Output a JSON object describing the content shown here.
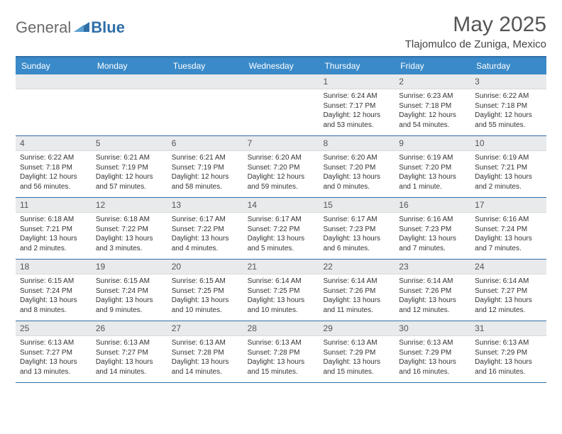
{
  "logo": {
    "general": "General",
    "blue": "Blue"
  },
  "title": "May 2025",
  "location": "Tlajomulco de Zuniga, Mexico",
  "accent_color": "#3a8ac9",
  "border_color": "#2f6fa8",
  "num_bg": "#e9eaec",
  "days": [
    "Sunday",
    "Monday",
    "Tuesday",
    "Wednesday",
    "Thursday",
    "Friday",
    "Saturday"
  ],
  "weeks": [
    [
      null,
      null,
      null,
      null,
      {
        "n": "1",
        "sr": "Sunrise: 6:24 AM",
        "ss": "Sunset: 7:17 PM",
        "dl": "Daylight: 12 hours and 53 minutes."
      },
      {
        "n": "2",
        "sr": "Sunrise: 6:23 AM",
        "ss": "Sunset: 7:18 PM",
        "dl": "Daylight: 12 hours and 54 minutes."
      },
      {
        "n": "3",
        "sr": "Sunrise: 6:22 AM",
        "ss": "Sunset: 7:18 PM",
        "dl": "Daylight: 12 hours and 55 minutes."
      }
    ],
    [
      {
        "n": "4",
        "sr": "Sunrise: 6:22 AM",
        "ss": "Sunset: 7:18 PM",
        "dl": "Daylight: 12 hours and 56 minutes."
      },
      {
        "n": "5",
        "sr": "Sunrise: 6:21 AM",
        "ss": "Sunset: 7:19 PM",
        "dl": "Daylight: 12 hours and 57 minutes."
      },
      {
        "n": "6",
        "sr": "Sunrise: 6:21 AM",
        "ss": "Sunset: 7:19 PM",
        "dl": "Daylight: 12 hours and 58 minutes."
      },
      {
        "n": "7",
        "sr": "Sunrise: 6:20 AM",
        "ss": "Sunset: 7:20 PM",
        "dl": "Daylight: 12 hours and 59 minutes."
      },
      {
        "n": "8",
        "sr": "Sunrise: 6:20 AM",
        "ss": "Sunset: 7:20 PM",
        "dl": "Daylight: 13 hours and 0 minutes."
      },
      {
        "n": "9",
        "sr": "Sunrise: 6:19 AM",
        "ss": "Sunset: 7:20 PM",
        "dl": "Daylight: 13 hours and 1 minute."
      },
      {
        "n": "10",
        "sr": "Sunrise: 6:19 AM",
        "ss": "Sunset: 7:21 PM",
        "dl": "Daylight: 13 hours and 2 minutes."
      }
    ],
    [
      {
        "n": "11",
        "sr": "Sunrise: 6:18 AM",
        "ss": "Sunset: 7:21 PM",
        "dl": "Daylight: 13 hours and 2 minutes."
      },
      {
        "n": "12",
        "sr": "Sunrise: 6:18 AM",
        "ss": "Sunset: 7:22 PM",
        "dl": "Daylight: 13 hours and 3 minutes."
      },
      {
        "n": "13",
        "sr": "Sunrise: 6:17 AM",
        "ss": "Sunset: 7:22 PM",
        "dl": "Daylight: 13 hours and 4 minutes."
      },
      {
        "n": "14",
        "sr": "Sunrise: 6:17 AM",
        "ss": "Sunset: 7:22 PM",
        "dl": "Daylight: 13 hours and 5 minutes."
      },
      {
        "n": "15",
        "sr": "Sunrise: 6:17 AM",
        "ss": "Sunset: 7:23 PM",
        "dl": "Daylight: 13 hours and 6 minutes."
      },
      {
        "n": "16",
        "sr": "Sunrise: 6:16 AM",
        "ss": "Sunset: 7:23 PM",
        "dl": "Daylight: 13 hours and 7 minutes."
      },
      {
        "n": "17",
        "sr": "Sunrise: 6:16 AM",
        "ss": "Sunset: 7:24 PM",
        "dl": "Daylight: 13 hours and 7 minutes."
      }
    ],
    [
      {
        "n": "18",
        "sr": "Sunrise: 6:15 AM",
        "ss": "Sunset: 7:24 PM",
        "dl": "Daylight: 13 hours and 8 minutes."
      },
      {
        "n": "19",
        "sr": "Sunrise: 6:15 AM",
        "ss": "Sunset: 7:24 PM",
        "dl": "Daylight: 13 hours and 9 minutes."
      },
      {
        "n": "20",
        "sr": "Sunrise: 6:15 AM",
        "ss": "Sunset: 7:25 PM",
        "dl": "Daylight: 13 hours and 10 minutes."
      },
      {
        "n": "21",
        "sr": "Sunrise: 6:14 AM",
        "ss": "Sunset: 7:25 PM",
        "dl": "Daylight: 13 hours and 10 minutes."
      },
      {
        "n": "22",
        "sr": "Sunrise: 6:14 AM",
        "ss": "Sunset: 7:26 PM",
        "dl": "Daylight: 13 hours and 11 minutes."
      },
      {
        "n": "23",
        "sr": "Sunrise: 6:14 AM",
        "ss": "Sunset: 7:26 PM",
        "dl": "Daylight: 13 hours and 12 minutes."
      },
      {
        "n": "24",
        "sr": "Sunrise: 6:14 AM",
        "ss": "Sunset: 7:27 PM",
        "dl": "Daylight: 13 hours and 12 minutes."
      }
    ],
    [
      {
        "n": "25",
        "sr": "Sunrise: 6:13 AM",
        "ss": "Sunset: 7:27 PM",
        "dl": "Daylight: 13 hours and 13 minutes."
      },
      {
        "n": "26",
        "sr": "Sunrise: 6:13 AM",
        "ss": "Sunset: 7:27 PM",
        "dl": "Daylight: 13 hours and 14 minutes."
      },
      {
        "n": "27",
        "sr": "Sunrise: 6:13 AM",
        "ss": "Sunset: 7:28 PM",
        "dl": "Daylight: 13 hours and 14 minutes."
      },
      {
        "n": "28",
        "sr": "Sunrise: 6:13 AM",
        "ss": "Sunset: 7:28 PM",
        "dl": "Daylight: 13 hours and 15 minutes."
      },
      {
        "n": "29",
        "sr": "Sunrise: 6:13 AM",
        "ss": "Sunset: 7:29 PM",
        "dl": "Daylight: 13 hours and 15 minutes."
      },
      {
        "n": "30",
        "sr": "Sunrise: 6:13 AM",
        "ss": "Sunset: 7:29 PM",
        "dl": "Daylight: 13 hours and 16 minutes."
      },
      {
        "n": "31",
        "sr": "Sunrise: 6:13 AM",
        "ss": "Sunset: 7:29 PM",
        "dl": "Daylight: 13 hours and 16 minutes."
      }
    ]
  ]
}
